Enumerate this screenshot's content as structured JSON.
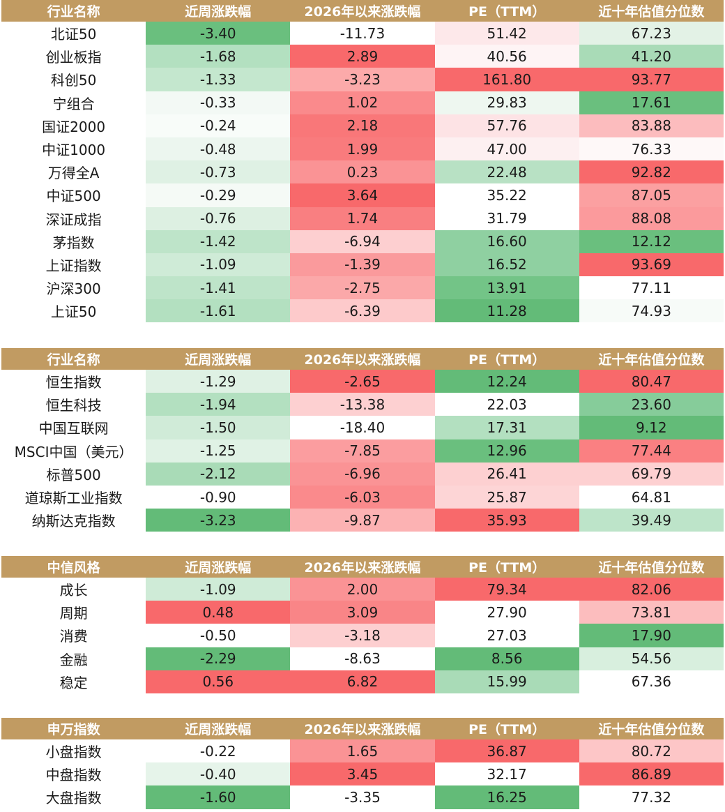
{
  "tables": [
    {
      "headers": [
        "行业名称",
        "近周涨跌幅",
        "2026年以来涨跌幅",
        "PE（TTM）",
        "近十年估值分位数"
      ],
      "rows": [
        {
          "name": "北证50",
          "values": [
            "-3.40",
            "-11.73",
            "51.42",
            "67.23"
          ],
          "colors": [
            "#6abf7e",
            "#ffffff",
            "#fde8ea",
            "#e3f2e6"
          ]
        },
        {
          "name": "创业板指",
          "values": [
            "-1.68",
            "2.89",
            "40.56",
            "41.20"
          ],
          "colors": [
            "#b3e0c0",
            "#f8696b",
            "#fef4f5",
            "#a9dbb7"
          ]
        },
        {
          "name": "科创50",
          "values": [
            "-1.33",
            "-3.23",
            "161.80",
            "93.77"
          ],
          "colors": [
            "#c4e7ce",
            "#fcaaaa",
            "#f8696b",
            "#f8696b"
          ]
        },
        {
          "name": "宁组合",
          "values": [
            "-0.33",
            "1.02",
            "29.83",
            "17.61"
          ],
          "colors": [
            "#f3f9f5",
            "#fa8a8c",
            "#eef7f0",
            "#6abf7e"
          ]
        },
        {
          "name": "国证2000",
          "values": [
            "-0.24",
            "2.18",
            "57.76",
            "83.88"
          ],
          "colors": [
            "#f8fcf9",
            "#f97779",
            "#fde3e5",
            "#fcbcbe"
          ]
        },
        {
          "name": "中证1000",
          "values": [
            "-0.48",
            "1.99",
            "47.00",
            "76.33"
          ],
          "colors": [
            "#ecf6ef",
            "#f97b7d",
            "#fdf0f1",
            "#fef8f8"
          ]
        },
        {
          "name": "万得全A",
          "values": [
            "-0.73",
            "0.23",
            "22.48",
            "92.82"
          ],
          "colors": [
            "#dff1e4",
            "#fa9395",
            "#b8e1c4",
            "#f8696b"
          ]
        },
        {
          "name": "中证500",
          "values": [
            "-0.29",
            "3.64",
            "35.22",
            "87.05"
          ],
          "colors": [
            "#f5faf6",
            "#f8696b",
            "#ffffff",
            "#fba0a1"
          ]
        },
        {
          "name": "深证成指",
          "values": [
            "-0.76",
            "1.74",
            "31.79",
            "88.08"
          ],
          "colors": [
            "#ddf0e2",
            "#f97f81",
            "#ffffff",
            "#fb9a9c"
          ]
        },
        {
          "name": "茅指数",
          "values": [
            "-1.42",
            "-6.94",
            "16.60",
            "12.12"
          ],
          "colors": [
            "#bee4c9",
            "#fdcfd0",
            "#8fd0a1",
            "#6abf7e"
          ]
        },
        {
          "name": "上证指数",
          "values": [
            "-1.09",
            "-1.39",
            "16.52",
            "93.69"
          ],
          "colors": [
            "#cfebd7",
            "#fa9a9c",
            "#8fd0a1",
            "#f8696b"
          ]
        },
        {
          "name": "沪深300",
          "values": [
            "-1.41",
            "-2.75",
            "13.91",
            "77.11"
          ],
          "colors": [
            "#bee4c9",
            "#fba8a9",
            "#73c487",
            "#ffffff"
          ]
        },
        {
          "name": "上证50",
          "values": [
            "-1.61",
            "-6.39",
            "11.28",
            "74.93"
          ],
          "colors": [
            "#b3e0c0",
            "#fdcacb",
            "#63bb78",
            "#f7fbf8"
          ]
        }
      ]
    },
    {
      "headers": [
        "行业名称",
        "近周涨跌幅",
        "2026年以来涨跌幅",
        "PE（TTM）",
        "近十年估值分位数"
      ],
      "rows": [
        {
          "name": "恒生指数",
          "values": [
            "-1.29",
            "-2.65",
            "12.24",
            "80.47"
          ],
          "colors": [
            "#dff1e4",
            "#f8696b",
            "#63bb78",
            "#f8696b"
          ]
        },
        {
          "name": "恒生科技",
          "values": [
            "-1.94",
            "-13.38",
            "22.03",
            "23.60"
          ],
          "colors": [
            "#b3e0c0",
            "#fdd0d1",
            "#ffffff",
            "#86cc9a"
          ]
        },
        {
          "name": "中国互联网",
          "values": [
            "-1.50",
            "-18.40",
            "17.31",
            "9.12"
          ],
          "colors": [
            "#d0ebd8",
            "#ffffff",
            "#b3e0c0",
            "#63bb78"
          ]
        },
        {
          "name": "MSCI中国（美元）",
          "values": [
            "-1.25",
            "-7.85",
            "12.96",
            "77.44"
          ],
          "colors": [
            "#e0f2e5",
            "#fb9d9f",
            "#6abf7e",
            "#fa8082"
          ]
        },
        {
          "name": "标普500",
          "values": [
            "-2.12",
            "-6.96",
            "26.41",
            "69.79"
          ],
          "colors": [
            "#a9dbb7",
            "#fa9395",
            "#fdd0d1",
            "#fdd0d1"
          ]
        },
        {
          "name": "道琼斯工业指数",
          "values": [
            "-0.90",
            "-6.03",
            "25.87",
            "64.81"
          ],
          "colors": [
            "#ffffff",
            "#fa8a8c",
            "#fdd5d6",
            "#ffffff"
          ]
        },
        {
          "name": "纳斯达克指数",
          "values": [
            "-3.23",
            "-9.87",
            "35.93",
            "39.49"
          ],
          "colors": [
            "#63bb78",
            "#fcb2b3",
            "#f8696b",
            "#bde4c9"
          ]
        }
      ]
    },
    {
      "headers": [
        "中信风格",
        "近周涨跌幅",
        "2026年以来涨跌幅",
        "PE（TTM）",
        "近十年估值分位数"
      ],
      "rows": [
        {
          "name": "成长",
          "values": [
            "-1.09",
            "2.00",
            "79.34",
            "82.06"
          ],
          "colors": [
            "#cfebd7",
            "#fa9395",
            "#f8696b",
            "#f8696b"
          ]
        },
        {
          "name": "周期",
          "values": [
            "0.48",
            "3.09",
            "27.90",
            "73.81"
          ],
          "colors": [
            "#f8696b",
            "#f98587",
            "#ffffff",
            "#fcbdbe"
          ]
        },
        {
          "name": "消费",
          "values": [
            "-0.50",
            "-3.18",
            "27.03",
            "17.90"
          ],
          "colors": [
            "#ffffff",
            "#fdcfd0",
            "#ffffff",
            "#63bb78"
          ]
        },
        {
          "name": "金融",
          "values": [
            "-2.29",
            "-8.63",
            "8.56",
            "54.56"
          ],
          "colors": [
            "#63bb78",
            "#ffffff",
            "#63bb78",
            "#d8efde"
          ]
        },
        {
          "name": "稳定",
          "values": [
            "0.56",
            "6.82",
            "15.99",
            "67.36"
          ],
          "colors": [
            "#f8696b",
            "#f8696b",
            "#a9dbb7",
            "#ffffff"
          ]
        }
      ]
    },
    {
      "headers": [
        "申万指数",
        "近周涨跌幅",
        "2026年以来涨跌幅",
        "PE（TTM）",
        "近十年估值分位数"
      ],
      "rows": [
        {
          "name": "小盘指数",
          "values": [
            "-0.22",
            "1.65",
            "36.87",
            "80.72"
          ],
          "colors": [
            "#ffffff",
            "#fa9395",
            "#f8696b",
            "#fdc6c7"
          ]
        },
        {
          "name": "中盘指数",
          "values": [
            "-0.40",
            "3.45",
            "32.17",
            "86.89"
          ],
          "colors": [
            "#e6f4ea",
            "#f8696b",
            "#ffffff",
            "#f8696b"
          ]
        },
        {
          "name": "大盘指数",
          "values": [
            "-1.60",
            "-3.35",
            "16.25",
            "77.32"
          ],
          "colors": [
            "#63bb78",
            "#ffffff",
            "#63bb78",
            "#ffffff"
          ]
        }
      ]
    }
  ]
}
